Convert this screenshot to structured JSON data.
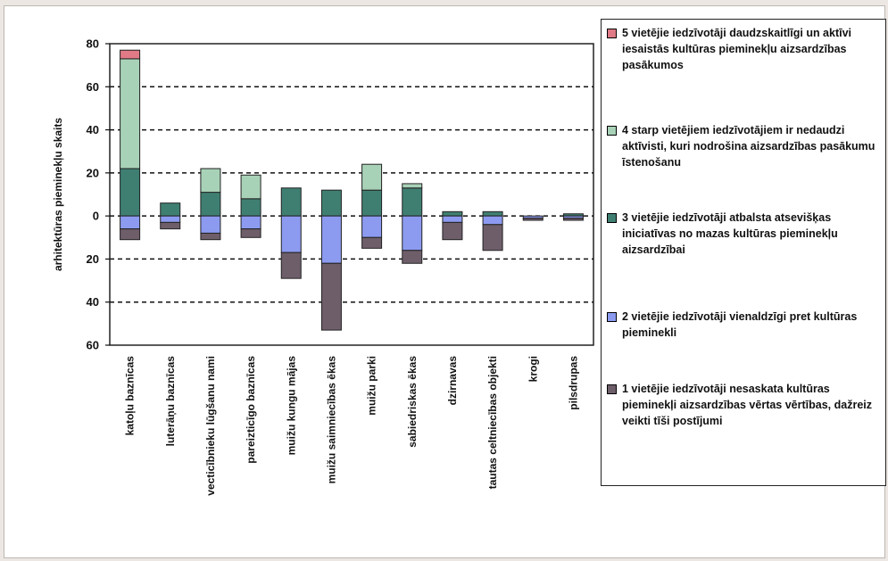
{
  "chart_data": {
    "type": "bar",
    "stacked": true,
    "diverging": true,
    "title": "",
    "xlabel": "",
    "ylabel": "arhitektūras pieminekļu skaits",
    "ylim": [
      -60,
      80
    ],
    "yticks": [
      {
        "value": 80,
        "label": "80"
      },
      {
        "value": 60,
        "label": "60"
      },
      {
        "value": 40,
        "label": "40"
      },
      {
        "value": 20,
        "label": "20"
      },
      {
        "value": 0,
        "label": "0"
      },
      {
        "value": -20,
        "label": "20"
      },
      {
        "value": -40,
        "label": "40"
      },
      {
        "value": -60,
        "label": "60"
      }
    ],
    "grid": "horizontal dashed",
    "legend_position": "right",
    "categories": [
      "katoļu baznīcas",
      "luterāņu baznīcas",
      "vecticībnieku lūgšanu nami",
      "pareizticīgo baznīcas",
      "muižu kungu mājas",
      "muižu saimniecības ēkas",
      "muižu parki",
      "sabiedriskas ēkas",
      "dzirnavas",
      "tautas celtniecības objekti",
      "krogi",
      "pilsdrupas"
    ],
    "series": [
      {
        "name": "5 vietējie iedzīvotāji daudzskaitlīgi un aktīvi iesaistās kultūras pieminekļu aizsardzības pasākumos",
        "color": "#e07a86",
        "values": [
          4,
          0,
          0,
          0,
          0,
          0,
          0,
          0,
          0,
          0,
          0,
          0
        ]
      },
      {
        "name": "4 starp vietējiem iedzīvotājiem ir nedaudzi aktīvisti, kuri nodrošina aizsardzības pasākumu īstenošanu",
        "color": "#a8d2b8",
        "values": [
          51,
          0,
          11,
          11,
          0,
          0,
          12,
          2,
          0,
          0,
          0,
          0
        ]
      },
      {
        "name": "3 vietējie iedzīvotāji atbalsta atsevišķas iniciatīvas no mazas kultūras pieminekļu aizsardzībai",
        "color": "#3f7f72",
        "values": [
          22,
          6,
          11,
          8,
          13,
          12,
          12,
          13,
          2,
          2,
          0,
          1
        ]
      },
      {
        "name": "2 vietējie iedzīvotāji vienaldzīgi pret kultūras pieminekli",
        "color": "#8c9bf0",
        "values": [
          -6,
          -3,
          -8,
          -6,
          -17,
          -22,
          -10,
          -16,
          -3,
          -4,
          -1,
          -1
        ]
      },
      {
        "name": "1 vietējie iedzīvotāji nesaskata kultūras pieminekļi aizsardzības vērtas vērtības, dažreiz veikti tīši postījumi",
        "color": "#6e5e6a",
        "values": [
          -5,
          -3,
          -3,
          -4,
          -12,
          -31,
          -5,
          -6,
          -8,
          -12,
          -1,
          -1
        ]
      }
    ]
  },
  "legend": {
    "items": [
      {
        "label": "5 vietējie iedzīvotāji daudzskaitlīgi un aktīvi iesaistās kultūras pieminekļu aizsardzības pasākumos",
        "color": "#e07a86"
      },
      {
        "label": "4 starp vietējiem iedzīvotājiem ir nedaudzi aktīvisti, kuri nodrošina aizsardzības pasākumu īstenošanu",
        "color": "#a8d2b8"
      },
      {
        "label": "3 vietējie iedzīvotāji atbalsta atsevišķas iniciatīvas no mazas kultūras pieminekļu aizsardzībai",
        "color": "#3f7f72"
      },
      {
        "label": "2 vietējie iedzīvotāji vienaldzīgi pret kultūras pieminekli",
        "color": "#8c9bf0"
      },
      {
        "label": "1 vietējie iedzīvotāji nesaskata kultūras pieminekļi aizsardzības vērtas vērtības, dažreiz veikti tīši postījumi",
        "color": "#6e5e6a"
      }
    ]
  }
}
